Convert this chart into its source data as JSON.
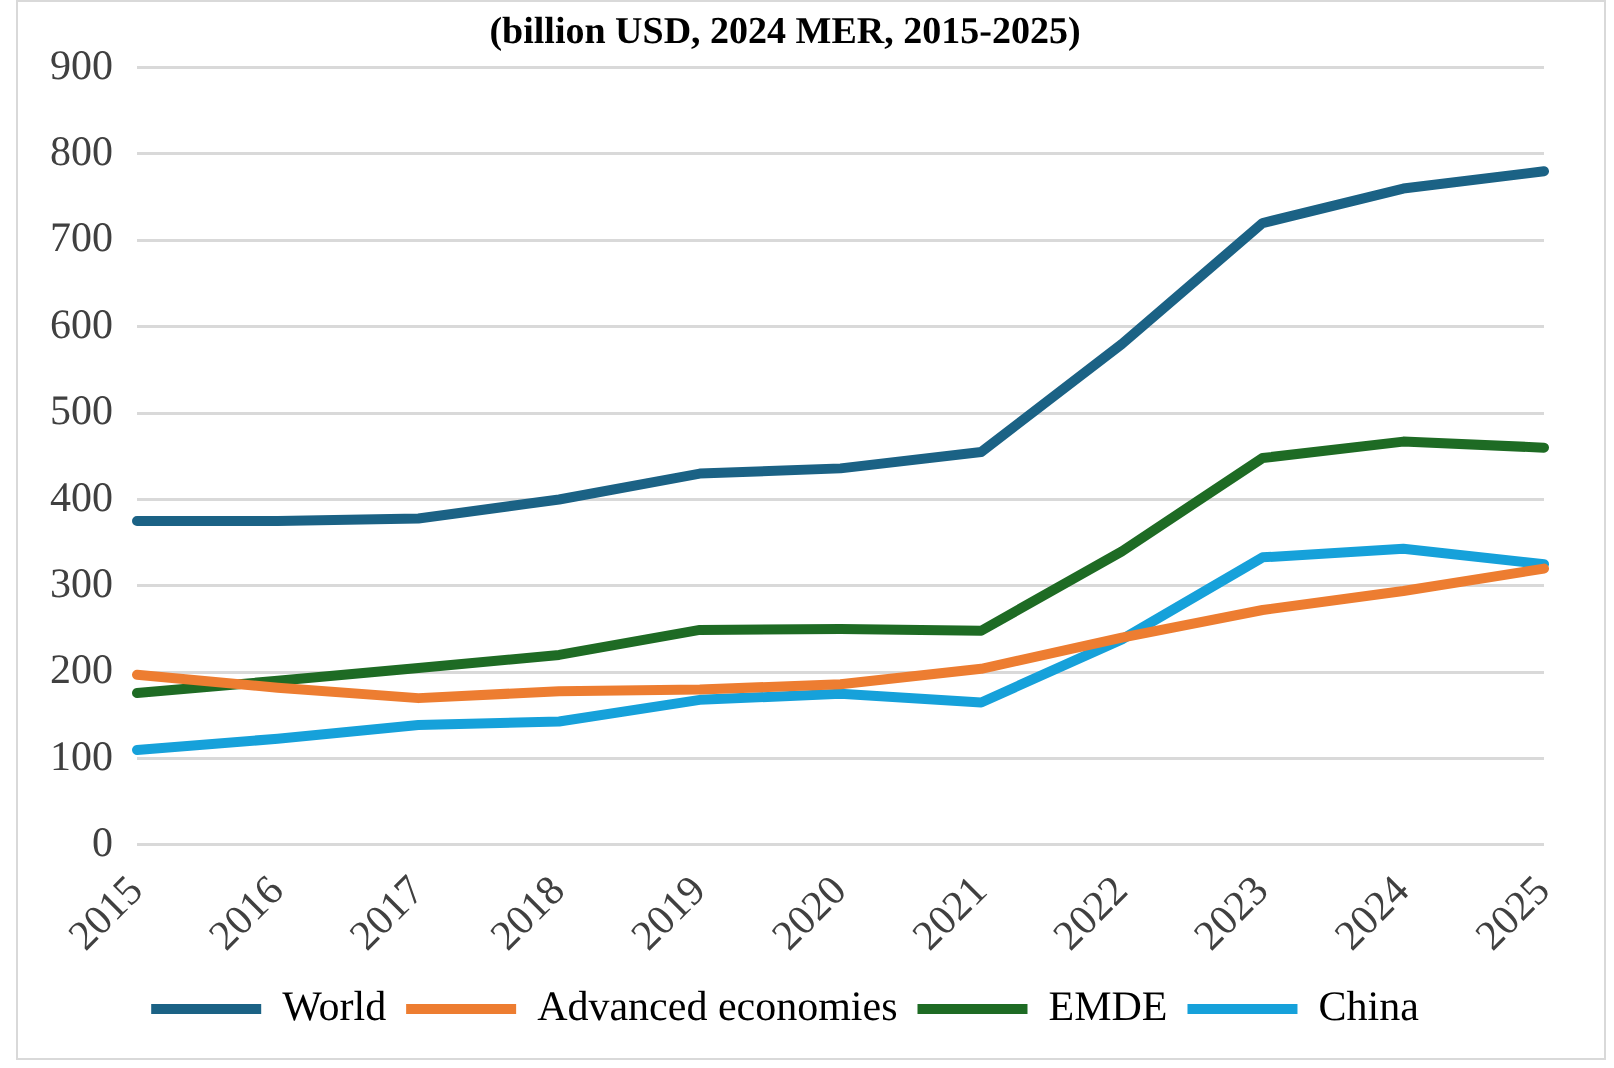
{
  "chart_data": {
    "type": "line",
    "title": "(billion USD, 2024 MER, 2015-2025)",
    "categories": [
      "2015",
      "2016",
      "2017",
      "2018",
      "2019",
      "2020",
      "2021",
      "2022",
      "2023",
      "2024",
      "2025"
    ],
    "series": [
      {
        "name": "World",
        "color": "#1b6285",
        "values": [
          375,
          375,
          378,
          400,
          430,
          436,
          455,
          580,
          720,
          760,
          780
        ]
      },
      {
        "name": "Advanced economies",
        "color": "#ed7d31",
        "values": [
          197,
          182,
          170,
          178,
          180,
          186,
          204,
          240,
          272,
          294,
          320
        ]
      },
      {
        "name": "EMDE",
        "color": "#1e6b24",
        "values": [
          176,
          190,
          205,
          220,
          249,
          250,
          248,
          340,
          448,
          467,
          460
        ]
      },
      {
        "name": "China",
        "color": "#16a1da",
        "values": [
          110,
          123,
          139,
          143,
          168,
          175,
          165,
          238,
          333,
          343,
          325
        ]
      }
    ],
    "ylim": [
      0,
      900
    ],
    "yticks": [
      0,
      100,
      200,
      300,
      400,
      500,
      600,
      700,
      800,
      900
    ],
    "grid": "y",
    "legend": "bottom",
    "marker": "none",
    "line_style": "solid"
  }
}
